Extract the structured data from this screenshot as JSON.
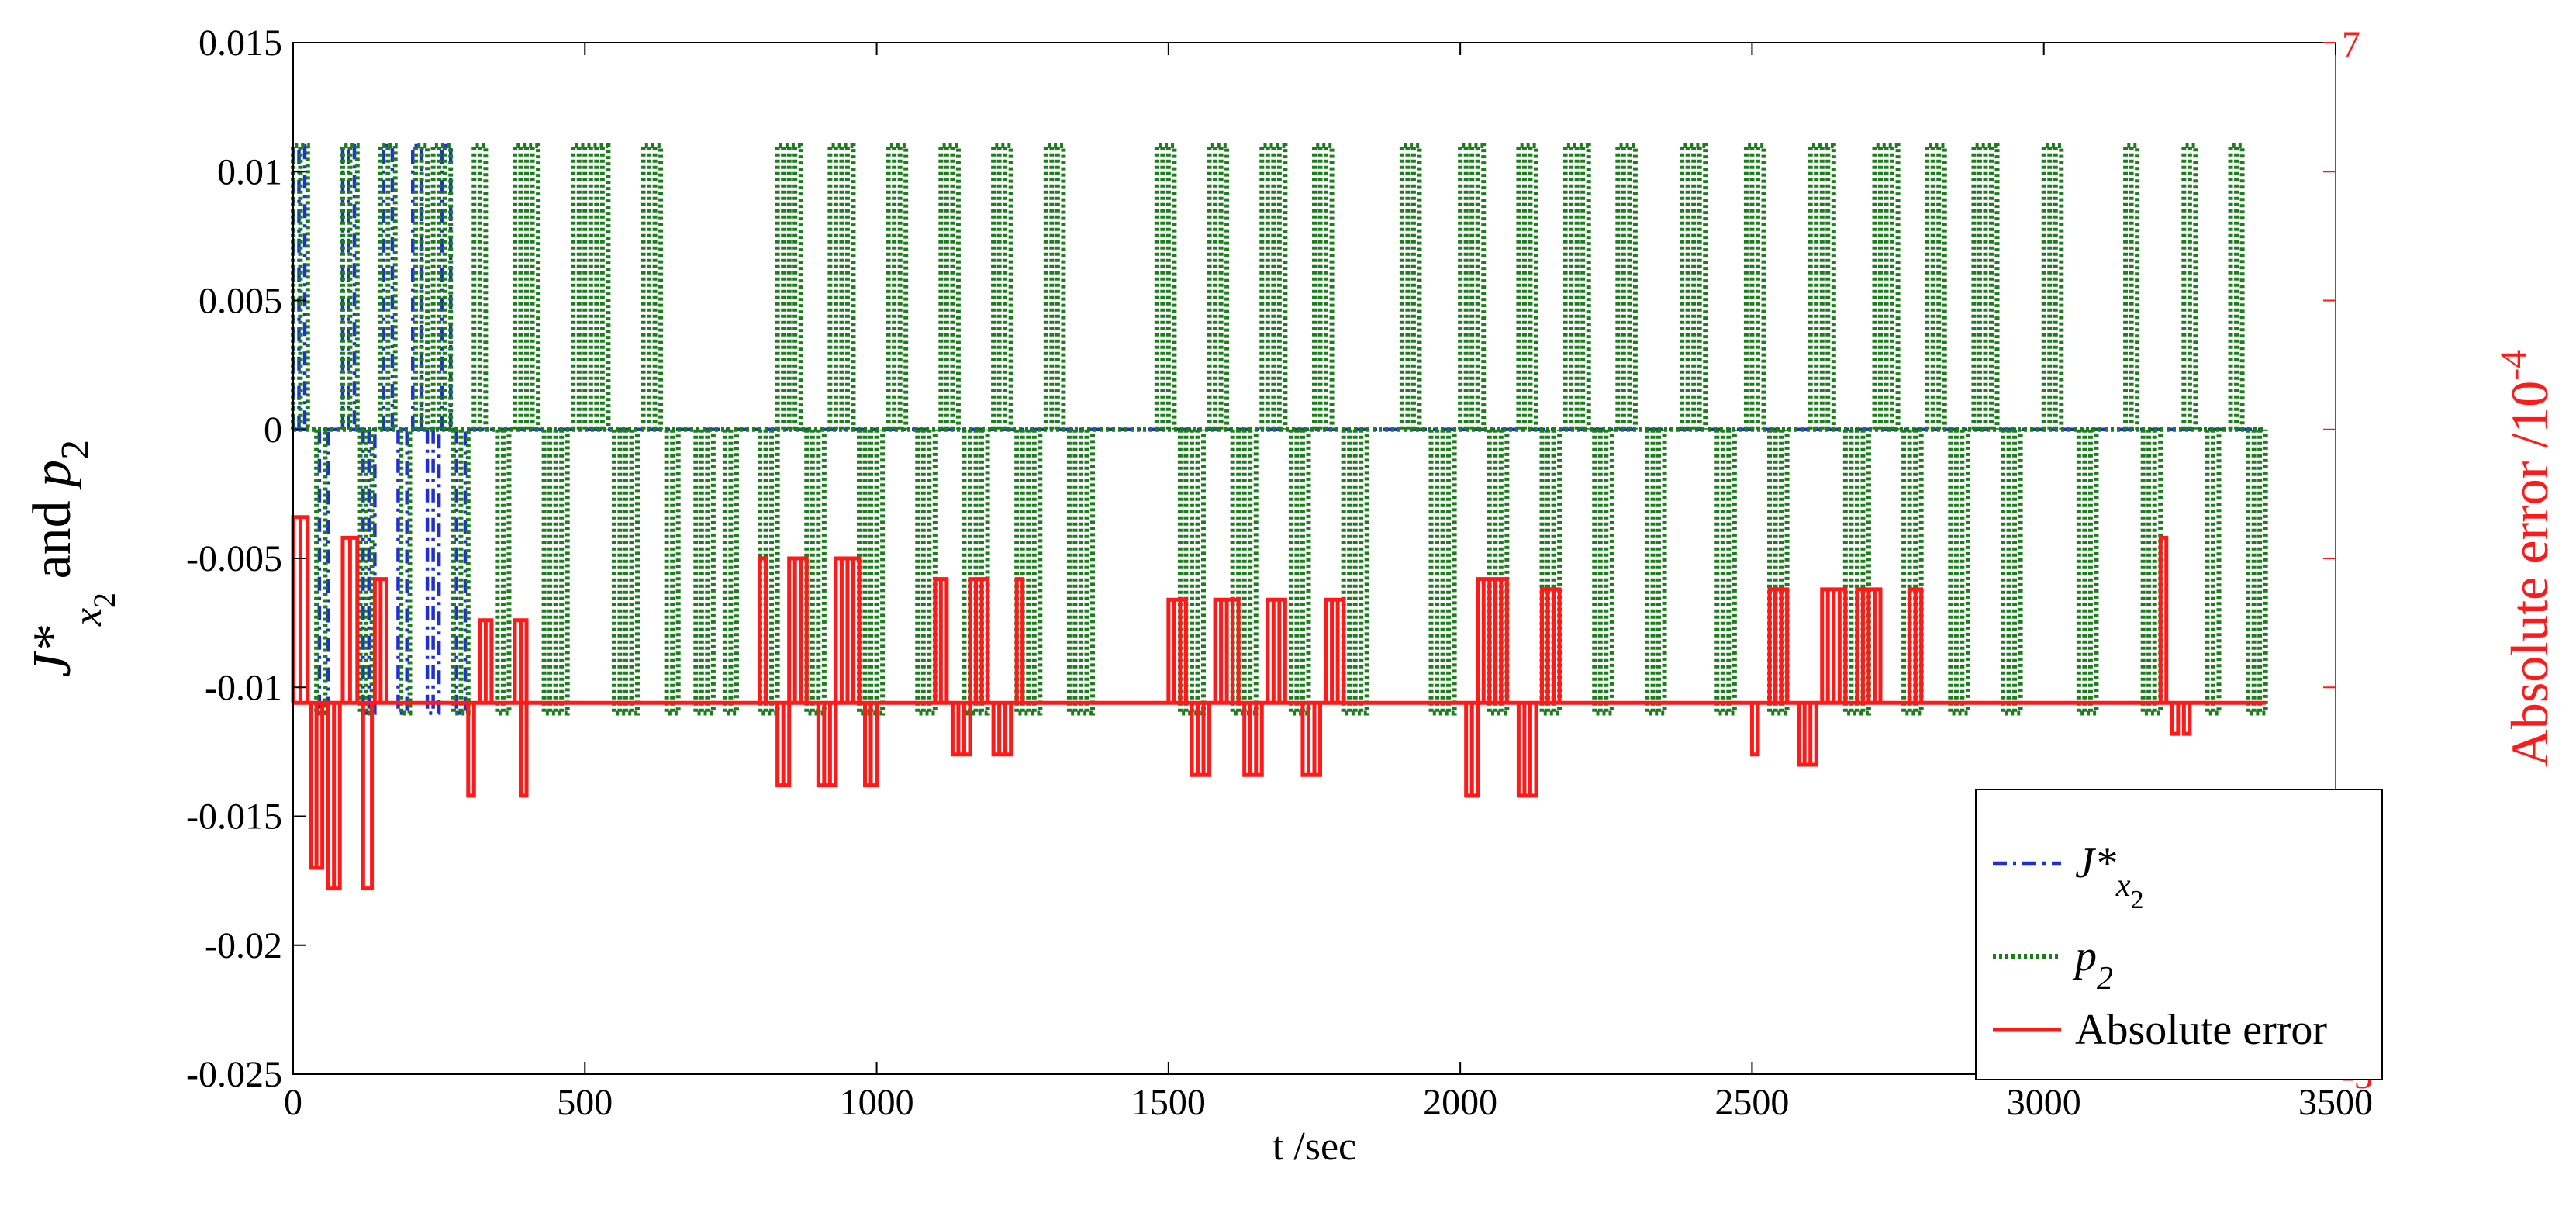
{
  "chart_data": {
    "type": "line",
    "xlabel": "t /sec",
    "ylabel": {
      "sym": "J*",
      "sub": "x",
      "subsub": "2",
      "joiner": " and ",
      "p": "p",
      "psub": "2"
    },
    "y2label": {
      "text": "Absolute error /10",
      "exp": "-4"
    },
    "xlim": [
      0,
      3500
    ],
    "ylim": [
      -0.025,
      0.015
    ],
    "y2lim": [
      -3,
      7
    ],
    "xticks": [
      0,
      500,
      1000,
      1500,
      2000,
      2500,
      3000,
      3500
    ],
    "xtick_labels": [
      "0",
      "500",
      "1000",
      "1500",
      "2000",
      "2500",
      "3000",
      "3500"
    ],
    "yticks": [
      -0.025,
      -0.02,
      -0.015,
      -0.01,
      -0.005,
      0,
      0.005,
      0.01,
      0.015
    ],
    "ytick_labels": [
      "-0.025",
      "-0.02",
      "-0.015",
      "-0.01",
      "-0.005",
      "0",
      "0.005",
      "0.01",
      "0.015"
    ],
    "y2ticks": [
      -3,
      7
    ],
    "y2tick_labels": [
      "-3",
      "7"
    ],
    "grid": false,
    "legend_position": "lower-right",
    "colors": {
      "jstar": "#1f2fd6",
      "p2": "#1a7f1a",
      "error": "#ff1a1a",
      "axis": "#000000",
      "y2axis": "#ff1a1a"
    },
    "series": [
      {
        "key": "jstar",
        "legend": {
          "sym": "J*",
          "sub": "x",
          "subsub": "2"
        },
        "style": "dash-dot",
        "levels": [
          0.011,
          0,
          -0.011
        ],
        "pulses": [
          [
            0,
            20,
            0.011
          ],
          [
            45,
            60,
            -0.011
          ],
          [
            85,
            105,
            0.011
          ],
          [
            120,
            140,
            -0.011
          ],
          [
            155,
            170,
            0.011
          ],
          [
            180,
            195,
            -0.011
          ],
          [
            205,
            220,
            0.011
          ],
          [
            230,
            250,
            -0.011
          ],
          [
            255,
            270,
            0.011
          ],
          [
            280,
            295,
            -0.011
          ]
        ]
      },
      {
        "key": "p2",
        "legend": {
          "sym": "p",
          "sub": "2"
        },
        "style": "dotted",
        "levels": [
          0.011,
          0,
          -0.011
        ],
        "pulses": [
          [
            0,
            25,
            0.011
          ],
          [
            40,
            55,
            -0.011
          ],
          [
            85,
            110,
            0.011
          ],
          [
            115,
            135,
            -0.011
          ],
          [
            150,
            175,
            0.011
          ],
          [
            185,
            200,
            -0.011
          ],
          [
            210,
            230,
            0.011
          ],
          [
            240,
            270,
            0.011
          ],
          [
            275,
            300,
            -0.011
          ],
          [
            310,
            330,
            0.011
          ],
          [
            350,
            370,
            -0.011
          ],
          [
            380,
            420,
            0.011
          ],
          [
            430,
            470,
            -0.011
          ],
          [
            480,
            540,
            0.011
          ],
          [
            550,
            590,
            -0.011
          ],
          [
            600,
            630,
            0.011
          ],
          [
            640,
            660,
            -0.011
          ],
          [
            690,
            720,
            -0.011
          ],
          [
            740,
            760,
            -0.011
          ],
          [
            800,
            830,
            -0.011
          ],
          [
            830,
            870,
            0.011
          ],
          [
            880,
            910,
            -0.011
          ],
          [
            920,
            960,
            0.011
          ],
          [
            970,
            1010,
            -0.011
          ],
          [
            1020,
            1050,
            0.011
          ],
          [
            1070,
            1100,
            -0.011
          ],
          [
            1110,
            1140,
            0.011
          ],
          [
            1150,
            1190,
            -0.011
          ],
          [
            1200,
            1230,
            0.011
          ],
          [
            1240,
            1280,
            -0.011
          ],
          [
            1290,
            1320,
            0.011
          ],
          [
            1330,
            1370,
            -0.011
          ],
          [
            1480,
            1510,
            0.011
          ],
          [
            1520,
            1560,
            -0.011
          ],
          [
            1570,
            1600,
            0.011
          ],
          [
            1610,
            1650,
            -0.011
          ],
          [
            1660,
            1700,
            0.011
          ],
          [
            1710,
            1740,
            -0.011
          ],
          [
            1750,
            1780,
            0.011
          ],
          [
            1800,
            1840,
            -0.011
          ],
          [
            1900,
            1930,
            0.011
          ],
          [
            1950,
            1990,
            -0.011
          ],
          [
            2000,
            2040,
            0.011
          ],
          [
            2050,
            2080,
            -0.011
          ],
          [
            2100,
            2130,
            0.011
          ],
          [
            2140,
            2170,
            -0.011
          ],
          [
            2180,
            2220,
            0.011
          ],
          [
            2230,
            2260,
            -0.011
          ],
          [
            2270,
            2300,
            0.011
          ],
          [
            2320,
            2350,
            -0.011
          ],
          [
            2380,
            2420,
            0.011
          ],
          [
            2440,
            2470,
            -0.011
          ],
          [
            2490,
            2520,
            0.011
          ],
          [
            2530,
            2560,
            -0.011
          ],
          [
            2600,
            2640,
            0.011
          ],
          [
            2660,
            2700,
            -0.011
          ],
          [
            2710,
            2750,
            0.011
          ],
          [
            2760,
            2790,
            -0.011
          ],
          [
            2800,
            2830,
            0.011
          ],
          [
            2840,
            2870,
            -0.011
          ],
          [
            2880,
            2920,
            0.011
          ],
          [
            2930,
            2960,
            -0.011
          ],
          [
            3000,
            3030,
            0.011
          ],
          [
            3060,
            3090,
            -0.011
          ],
          [
            3140,
            3160,
            0.011
          ],
          [
            3170,
            3200,
            -0.011
          ],
          [
            3240,
            3260,
            0.011
          ],
          [
            3280,
            3300,
            -0.011
          ],
          [
            3320,
            3340,
            0.011
          ],
          [
            3350,
            3380,
            -0.011
          ]
        ]
      },
      {
        "key": "error",
        "legend": {
          "text": "Absolute error"
        },
        "style": "solid",
        "axis": "right",
        "baseline": 0.6,
        "pulses": [
          [
            0,
            25,
            2.4
          ],
          [
            30,
            50,
            -1.0
          ],
          [
            60,
            80,
            -1.2
          ],
          [
            85,
            110,
            2.2
          ],
          [
            120,
            135,
            -1.2
          ],
          [
            140,
            160,
            1.8
          ],
          [
            300,
            310,
            -0.3
          ],
          [
            320,
            340,
            1.4
          ],
          [
            380,
            400,
            1.4
          ],
          [
            390,
            400,
            -0.3
          ],
          [
            800,
            810,
            2.0
          ],
          [
            830,
            850,
            -0.2
          ],
          [
            850,
            880,
            2.0
          ],
          [
            900,
            930,
            -0.2
          ],
          [
            930,
            970,
            2.0
          ],
          [
            980,
            1000,
            -0.2
          ],
          [
            1100,
            1120,
            1.8
          ],
          [
            1130,
            1160,
            0.1
          ],
          [
            1160,
            1190,
            1.8
          ],
          [
            1200,
            1230,
            0.1
          ],
          [
            1240,
            1250,
            1.8
          ],
          [
            1500,
            1530,
            1.6
          ],
          [
            1540,
            1570,
            -0.1
          ],
          [
            1580,
            1620,
            1.6
          ],
          [
            1630,
            1660,
            -0.1
          ],
          [
            1670,
            1700,
            1.6
          ],
          [
            1730,
            1760,
            -0.1
          ],
          [
            1770,
            1800,
            1.6
          ],
          [
            2010,
            2030,
            -0.3
          ],
          [
            2030,
            2080,
            1.8
          ],
          [
            2100,
            2130,
            -0.3
          ],
          [
            2140,
            2170,
            1.7
          ],
          [
            2500,
            2510,
            0.1
          ],
          [
            2530,
            2560,
            1.7
          ],
          [
            2580,
            2610,
            0.0
          ],
          [
            2620,
            2660,
            1.7
          ],
          [
            2680,
            2720,
            1.7
          ],
          [
            2770,
            2790,
            1.7
          ],
          [
            3200,
            3210,
            2.2
          ],
          [
            3220,
            3230,
            0.3
          ],
          [
            3240,
            3250,
            0.3
          ]
        ]
      }
    ]
  }
}
